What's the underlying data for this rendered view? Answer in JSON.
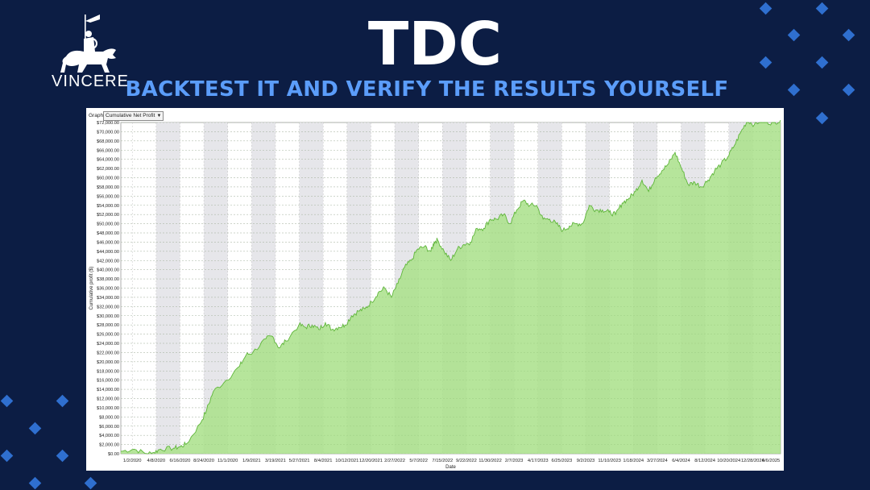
{
  "header": {
    "title": "TDC",
    "subtitle": "BACKTEST IT AND VERIFY THE RESULTS YOURSELF",
    "logo_text": "VINCERE"
  },
  "panel": {
    "graph_label": "Graph",
    "graph_selected": "Cumulative Net Profit"
  },
  "colors": {
    "background": "#0c1d44",
    "accent": "#5b9dfa",
    "fill": "#a9e08a",
    "line": "#5fb63a"
  },
  "chart_data": {
    "type": "area",
    "xlabel": "Date",
    "ylabel": "Cumulative profit ($)",
    "ylim": [
      0,
      72000
    ],
    "yticks": [
      0,
      2000,
      4000,
      6000,
      8000,
      10000,
      12000,
      14000,
      16000,
      18000,
      20000,
      22000,
      24000,
      26000,
      28000,
      30000,
      32000,
      34000,
      36000,
      38000,
      40000,
      42000,
      44000,
      46000,
      48000,
      50000,
      52000,
      54000,
      56000,
      58000,
      60000,
      62000,
      64000,
      66000,
      68000,
      70000,
      72000
    ],
    "ytick_labels": [
      "$0.00",
      "$2,000.00",
      "$4,000.00",
      "$6,000.00",
      "$8,000.00",
      "$10,000.00",
      "$12,000.00",
      "$14,000.00",
      "$16,000.00",
      "$18,000.00",
      "$20,000.00",
      "$22,000.00",
      "$24,000.00",
      "$26,000.00",
      "$28,000.00",
      "$30,000.00",
      "$32,000.00",
      "$34,000.00",
      "$36,000.00",
      "$38,000.00",
      "$40,000.00",
      "$42,000.00",
      "$44,000.00",
      "$46,000.00",
      "$48,000.00",
      "$50,000.00",
      "$52,000.00",
      "$54,000.00",
      "$56,000.00",
      "$58,000.00",
      "$60,000.00",
      "$62,000.00",
      "$64,000.00",
      "$66,000.00",
      "$68,000.00",
      "$70,000.00",
      "$72,000.00"
    ],
    "xticks": [
      "1/2/2020",
      "4/8/2020",
      "6/16/2020",
      "8/24/2020",
      "11/1/2020",
      "1/9/2021",
      "3/19/2021",
      "5/27/2021",
      "8/4/2021",
      "10/12/2021",
      "12/20/2021",
      "2/27/2022",
      "5/7/2022",
      "7/15/2022",
      "9/22/2022",
      "11/30/2022",
      "2/7/2023",
      "4/17/2023",
      "6/25/2023",
      "9/2/2023",
      "11/10/2023",
      "1/18/2024",
      "3/27/2024",
      "6/4/2024",
      "8/12/2024",
      "10/20/2024",
      "12/28/2024",
      "6/6/2025"
    ],
    "grid": true,
    "series": [
      {
        "x": [
          0,
          0.02,
          0.04,
          0.05,
          0.06,
          0.08,
          0.09,
          0.1,
          0.12,
          0.13,
          0.14,
          0.16,
          0.18,
          0.19,
          0.2,
          0.22,
          0.23,
          0.24,
          0.25,
          0.27,
          0.28,
          0.29,
          0.3,
          0.31,
          0.32,
          0.33,
          0.34,
          0.35,
          0.36,
          0.37,
          0.38,
          0.39,
          0.4,
          0.41,
          0.42,
          0.43,
          0.44,
          0.45,
          0.46,
          0.47,
          0.475,
          0.48,
          0.49,
          0.5,
          0.51,
          0.52,
          0.53,
          0.54,
          0.55,
          0.56,
          0.57,
          0.58,
          0.59,
          0.6,
          0.61,
          0.62,
          0.63,
          0.64,
          0.65,
          0.66,
          0.67,
          0.68,
          0.69,
          0.7,
          0.71,
          0.72,
          0.73,
          0.74,
          0.75,
          0.76,
          0.77,
          0.78,
          0.79,
          0.8,
          0.81,
          0.82,
          0.83,
          0.84,
          0.85,
          0.86,
          0.87,
          0.88,
          0.89,
          0.9,
          0.91,
          0.92,
          0.93,
          0.94,
          0.95,
          0.96,
          0.97,
          0.98,
          0.99,
          1.0
        ],
        "values": [
          500,
          1000,
          0,
          300,
          1000,
          1200,
          1500,
          2200,
          6500,
          9500,
          13500,
          16000,
          19000,
          21500,
          22000,
          25000,
          25500,
          23000,
          24500,
          28000,
          27500,
          28000,
          27000,
          28500,
          27000,
          27500,
          28000,
          30000,
          31000,
          31500,
          33000,
          35000,
          36000,
          34000,
          37000,
          40500,
          42000,
          44500,
          45000,
          44000,
          46000,
          46500,
          44000,
          42000,
          44500,
          45500,
          46000,
          49000,
          49000,
          51000,
          51000,
          52000,
          50000,
          53000,
          55000,
          54000,
          54000,
          51000,
          51000,
          50000,
          48500,
          49500,
          50000,
          50000,
          54000,
          53000,
          53000,
          52500,
          52000,
          54500,
          55500,
          57000,
          59500,
          57000,
          60000,
          61500,
          63000,
          65500,
          62000,
          58500,
          59000,
          58000,
          59500,
          61500,
          63000,
          64500,
          67000,
          70000,
          72500,
          71500,
          72500,
          72000,
          72000,
          72500
        ]
      }
    ]
  }
}
